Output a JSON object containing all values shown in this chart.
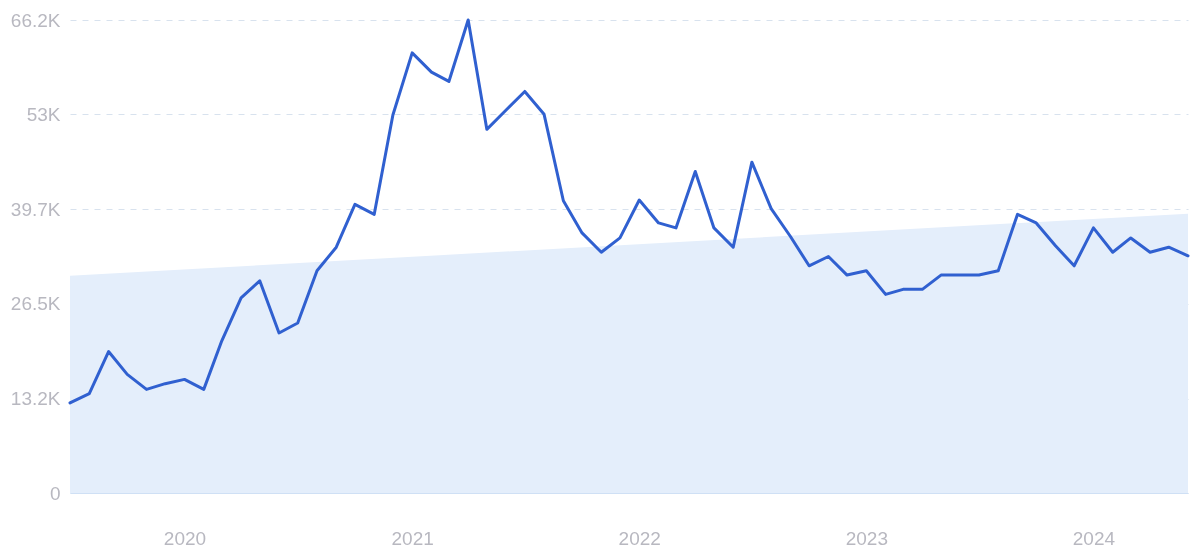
{
  "chart_data": {
    "type": "line",
    "x": [
      "2019-07",
      "2019-08",
      "2019-09",
      "2019-10",
      "2019-11",
      "2019-12",
      "2020-01",
      "2020-02",
      "2020-03",
      "2020-04",
      "2020-05",
      "2020-06",
      "2020-07",
      "2020-08",
      "2020-09",
      "2020-10",
      "2020-11",
      "2020-12",
      "2021-01",
      "2021-02",
      "2021-03",
      "2021-04",
      "2021-05",
      "2021-06",
      "2021-07",
      "2021-08",
      "2021-09",
      "2021-10",
      "2021-11",
      "2021-12",
      "2022-01",
      "2022-02",
      "2022-03",
      "2022-04",
      "2022-05",
      "2022-06",
      "2022-07",
      "2022-08",
      "2022-09",
      "2022-10",
      "2022-11",
      "2022-12",
      "2023-01",
      "2023-02",
      "2023-03",
      "2023-04",
      "2023-05",
      "2023-06",
      "2023-07",
      "2023-08",
      "2023-09",
      "2023-10",
      "2023-11",
      "2023-12",
      "2024-01",
      "2024-02",
      "2024-03",
      "2024-04",
      "2024-05",
      "2024-06"
    ],
    "series": [
      {
        "type": "area",
        "color": "#e4eefb",
        "x": [
          "2019-07",
          "2024-06"
        ],
        "values": [
          30400,
          39100
        ]
      },
      {
        "color": "#3060d0",
        "values": [
          12600,
          13900,
          19800,
          16600,
          14500,
          15300,
          15900,
          14500,
          21300,
          27300,
          29700,
          22400,
          23800,
          31100,
          34400,
          40400,
          39000,
          52900,
          61600,
          58900,
          57600,
          66200,
          50900,
          53600,
          56200,
          53000,
          40900,
          36400,
          33700,
          35700,
          41000,
          37800,
          37100,
          45000,
          37100,
          34400,
          46300,
          39800,
          35900,
          31800,
          33100,
          30500,
          31100,
          27800,
          28500,
          28500,
          30500,
          30500,
          30500,
          31100,
          39000,
          37800,
          34600,
          31800,
          37100,
          33700,
          35700,
          33700,
          34400,
          33200
        ]
      }
    ],
    "xlim": [
      "2019-07",
      "2024-06"
    ],
    "xticks": [
      "2020",
      "2021",
      "2022",
      "2023",
      "2024"
    ],
    "ylim": [
      0,
      66200
    ],
    "yticks": [
      0,
      {
        "value": 13200,
        "label": "13.2K"
      },
      {
        "value": 26500,
        "label": "26.5K"
      },
      {
        "value": 39700,
        "label": "39.7K"
      },
      {
        "value": 53000,
        "label": "53K"
      },
      {
        "value": 66200,
        "label": "66.2K"
      }
    ],
    "grid": "y",
    "marker": "none",
    "line_style": "solid"
  }
}
